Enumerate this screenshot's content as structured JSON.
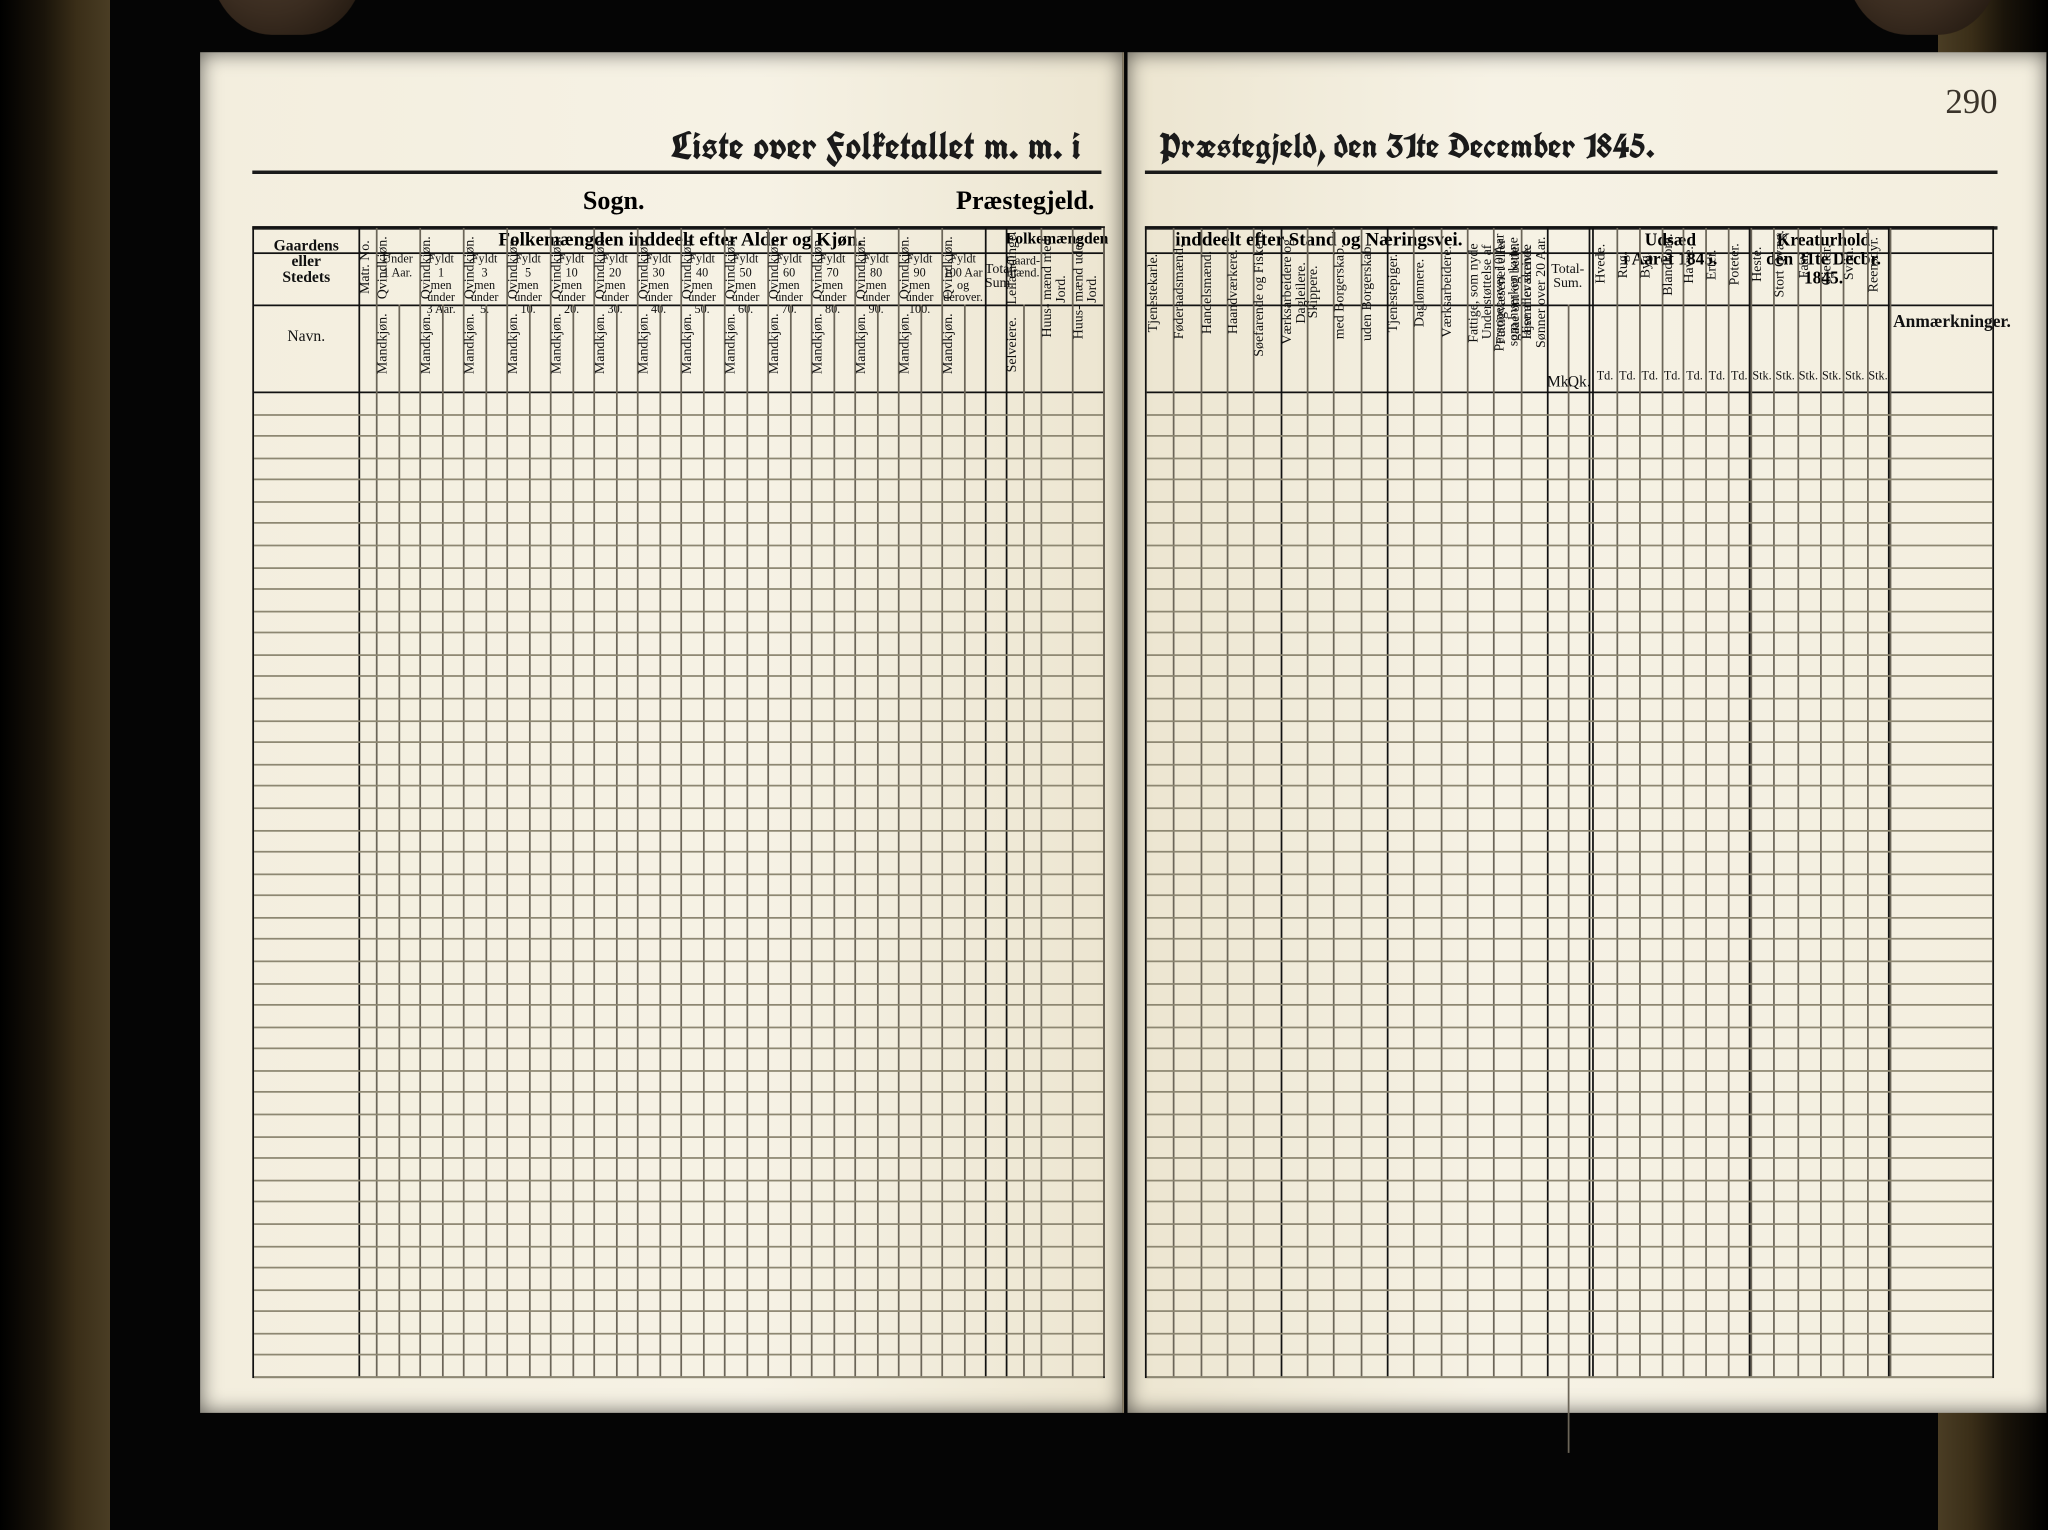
{
  "folio_number": "290",
  "title_left": "Liste over Folketallet m. m. i",
  "title_right": "Præstegjeld, den 31te December 1845.",
  "sogn_label": "Sogn.",
  "praestegjeld_label": "Præstegjeld.",
  "left": {
    "gaard_label": "Gaardens eller\nStedets",
    "gaard_sub": "Navn.",
    "matr_no": "Matr. No.",
    "age_section": "Folkemængden inddeelt efter Alder og Kjøn.",
    "age_cols": [
      {
        "top": "Under",
        "n": "1 Aar."
      },
      {
        "top": "Fyldt",
        "n": "1\nmen under\n3 Aar."
      },
      {
        "top": "Fyldt",
        "n": "3\nmen under\n5."
      },
      {
        "top": "Fyldt",
        "n": "5\nmen under\n10."
      },
      {
        "top": "Fyldt",
        "n": "10\nmen under\n20."
      },
      {
        "top": "Fyldt",
        "n": "20\nmen under\n30."
      },
      {
        "top": "Fyldt",
        "n": "30\nmen under\n40."
      },
      {
        "top": "Fyldt",
        "n": "40\nmen under\n50."
      },
      {
        "top": "Fyldt",
        "n": "50\nmen under\n60."
      },
      {
        "top": "Fyldt",
        "n": "60\nmen under\n70."
      },
      {
        "top": "Fyldt",
        "n": "70\nmen under\n80."
      },
      {
        "top": "Fyldt",
        "n": "80\nmen under\n90."
      },
      {
        "top": "Fyldt",
        "n": "90\nmen under\n100."
      },
      {
        "top": "Fyldt",
        "n": "100 Aar\nog\nderover."
      }
    ],
    "mk": "Mandkjøn.",
    "qk": "Qvindkjøn.",
    "total": "Total-\nSum.",
    "stand_section": "Folkemængden",
    "stand_cols": [
      "Gaard-\nmænd.",
      "Huus-\nmænd\nmed Jord.",
      "Huus-\nmænd\nuden Jord."
    ],
    "stand_sub": [
      "Selveiere.",
      "Leilændinge."
    ],
    "body_rows": 45
  },
  "right": {
    "stand_section": "inddeelt efter Stand og Næringsvei.",
    "cols": [
      "Tjenestekarle.",
      "Føderaadsmænd.",
      "Handelsmænd.",
      "Haandværkere.",
      "Søefarende og Fiskere.",
      "Værksarbeidere og Dagleilere.",
      "Skippere.",
      "med Borgerskab.",
      "uden Borgerskab.",
      "Tjenestepiger.",
      "Daglønnere.",
      "Værksarbeidere.",
      "Fattige, som nyde Understøttelse af Fattigvæsenet eller gaae om og betle.",
      "Personer over 10 Aar som hverken kunne læse eller skrive.",
      "Hjemmeværende Sønner over 20 Aar."
    ],
    "udsaed": {
      "title": "Udsæd\ni Aaret 1845.",
      "sub": [
        "Hvede.",
        "Rug.",
        "Byg.",
        "Blandkorn.",
        "Havre.",
        "Erter.",
        "Poteter."
      ],
      "unit": "Td."
    },
    "kreatur": {
      "title": "Kreaturhold\nden 31te Decbr. 1845.",
      "sub": [
        "Heste.",
        "Stort Qvæg.",
        "Faar.",
        "Gjeder.",
        "Sviin.",
        "Reensdyr."
      ],
      "unit": "Stk."
    },
    "total": "Total-\nSum.",
    "mk": "Mk.",
    "qk": "Qk.",
    "anm": "Anmærkninger.",
    "body_rows": 45
  },
  "colors": {
    "paper": "#f4efe2",
    "ink": "#1a1a1a",
    "rule": "#6b6558",
    "row": "#8d8772",
    "bg": "#000000"
  }
}
